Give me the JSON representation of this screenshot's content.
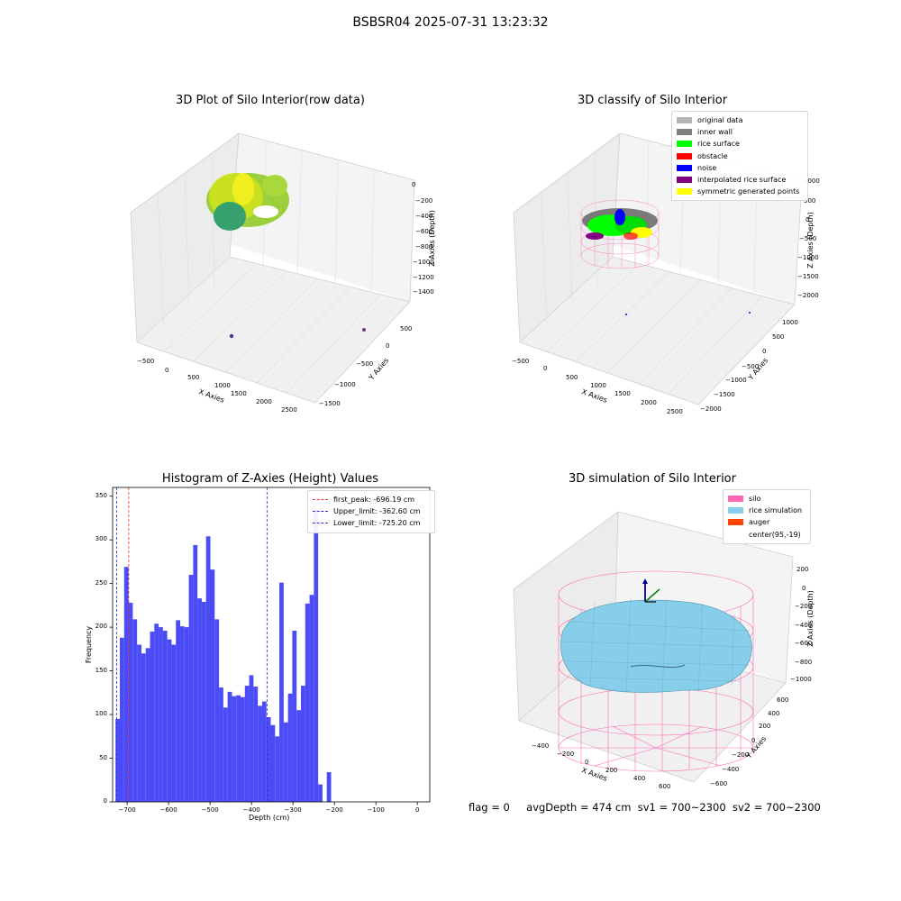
{
  "suptitle": "BSBSR04 2025-07-31 13:23:32",
  "footer": {
    "flag": "flag = 0",
    "avg_depth": "avgDepth = 474 cm",
    "sv1": "sv1 = 700~2300",
    "sv2": "sv2 = 700~2300"
  },
  "colors": {
    "hist_bar": "#4b4bf7",
    "first_peak_line": "#e03030",
    "limit_line": "#3030c8",
    "silo": "#ff69b4",
    "rice_simulation": "#87ceeb",
    "auger": "#ff4500",
    "original_data": "#b5b5b5",
    "inner_wall": "#808080",
    "rice_surface": "#00ff00",
    "obstacle": "#ff0000",
    "noise": "#0000ff",
    "interpolated_rice_surface": "#800080",
    "symmetric_generated_points": "#ffff00"
  },
  "chart_data": [
    {
      "type": "scatter",
      "title": "3D Plot of Silo Interior(row data)",
      "xlabel": "X Axies",
      "ylabel": "Y Axies",
      "zlabel": "Z Axies (Depth)",
      "x_ticks": [
        "−500",
        "0",
        "500",
        "1000",
        "1500",
        "2000",
        "2500"
      ],
      "y_ticks": [
        "500",
        "0",
        "−500",
        "−1000",
        "−1500"
      ],
      "z_ticks": [
        "0",
        "−200",
        "−400",
        "−600",
        "−800",
        "−1000",
        "−1200",
        "−1400"
      ]
    },
    {
      "type": "scatter",
      "title": "3D classify of Silo Interior",
      "xlabel": "X Axies",
      "ylabel": "Y Axies",
      "zlabel": "Z Axies (Depth)",
      "x_ticks": [
        "−500",
        "0",
        "500",
        "1000",
        "1500",
        "2000",
        "2500"
      ],
      "y_ticks": [
        "1000",
        "500",
        "0",
        "−500",
        "−1000",
        "−1500",
        "−2000"
      ],
      "z_ticks": [
        "1000",
        "500",
        "0",
        "−500",
        "−1000",
        "−1500",
        "−2000"
      ],
      "legend": [
        "original data",
        "inner wall",
        "rice surface",
        "obstacle",
        "noise",
        "interpolated rice surface",
        "symmetric generated points"
      ],
      "legend_position": "top-right"
    },
    {
      "type": "bar",
      "title": "Histogram of Z-Axies (Height) Values",
      "xlabel": "Depth (cm)",
      "ylabel": "Frequency",
      "xlim": [
        -735,
        30
      ],
      "ylim": [
        0,
        360
      ],
      "bin_width": 10.4,
      "bin_start": -728,
      "values": [
        95,
        188,
        269,
        228,
        209,
        180,
        170,
        176,
        195,
        204,
        200,
        196,
        186,
        180,
        208,
        201,
        200,
        260,
        294,
        233,
        229,
        304,
        266,
        209,
        131,
        108,
        126,
        121,
        122,
        120,
        133,
        145,
        132,
        110,
        115,
        97,
        88,
        75,
        251,
        91,
        124,
        196,
        105,
        133,
        227,
        237,
        335,
        20,
        0,
        34
      ],
      "x_ticks": [
        "−700",
        "−600",
        "−500",
        "−400",
        "−300",
        "−200",
        "−100",
        "0"
      ],
      "y_ticks": [
        "0",
        "50",
        "100",
        "150",
        "200",
        "250",
        "300",
        "350"
      ],
      "lines": [
        {
          "name": "first_peak: -696.19 cm",
          "x": -696.19
        },
        {
          "name": "Upper_limit: -362.60 cm",
          "x": -362.6
        },
        {
          "name": "Lower_limit: -725.20 cm",
          "x": -725.2
        }
      ],
      "legend_position": "top-right"
    },
    {
      "type": "other",
      "title": "3D simulation of Silo Interior",
      "xlabel": "X Axies",
      "ylabel": "Y Axies",
      "zlabel": "Z Axies (Depth)",
      "x_ticks": [
        "−400",
        "−200",
        "0",
        "200",
        "400",
        "600"
      ],
      "y_ticks": [
        "600",
        "400",
        "200",
        "0",
        "−200",
        "−400",
        "−600"
      ],
      "z_ticks": [
        "200",
        "0",
        "−200",
        "−400",
        "−600",
        "−800",
        "−1000"
      ],
      "legend": [
        "silo",
        "rice simulation",
        "auger",
        "center(95,-19)"
      ],
      "legend_position": "top-right"
    }
  ]
}
